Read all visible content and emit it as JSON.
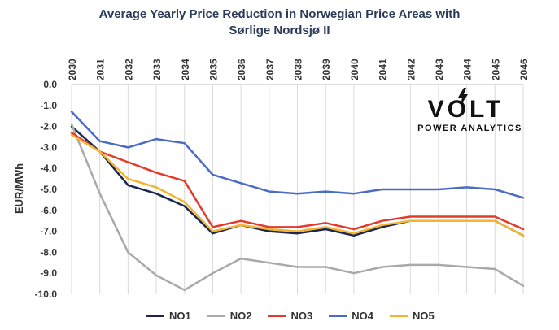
{
  "chart_data": {
    "type": "line",
    "title": "Average Yearly Price Reduction in Norwegian Price Areas with",
    "subtitle": "Sørlige Nordsjø II",
    "ylabel": "EUR/MWh",
    "xlabel": "",
    "x": [
      "2030",
      "2031",
      "2032",
      "2033",
      "2034",
      "2035",
      "2036",
      "2037",
      "2038",
      "2039",
      "2040",
      "2041",
      "2042",
      "2043",
      "2044",
      "2045",
      "2046"
    ],
    "ylim": [
      -10.0,
      0.0
    ],
    "yticks": [
      "0.0",
      "-1.0",
      "-2.0",
      "-3.0",
      "-4.0",
      "-5.0",
      "-6.0",
      "-7.0",
      "-8.0",
      "-9.0",
      "-10.0"
    ],
    "ytick_values": [
      0,
      -1,
      -2,
      -3,
      -4,
      -5,
      -6,
      -7,
      -8,
      -9,
      -10
    ],
    "legend_position": "bottom",
    "series": [
      {
        "name": "NO1",
        "color": "#1c2650",
        "values": [
          -2.0,
          -3.2,
          -4.8,
          -5.2,
          -5.8,
          -7.1,
          -6.7,
          -7.0,
          -7.1,
          -6.9,
          -7.2,
          -6.8,
          -6.5,
          -6.5,
          -6.5,
          -6.5,
          -7.2
        ]
      },
      {
        "name": "NO2",
        "color": "#a9a9a9",
        "values": [
          -1.9,
          -5.2,
          -8.0,
          -9.1,
          -9.8,
          -9.0,
          -8.3,
          -8.5,
          -8.7,
          -8.7,
          -9.0,
          -8.7,
          -8.6,
          -8.6,
          -8.7,
          -8.8,
          -9.6
        ]
      },
      {
        "name": "NO3",
        "color": "#e43a2c",
        "values": [
          -2.3,
          -3.2,
          -3.7,
          -4.2,
          -4.6,
          -6.8,
          -6.5,
          -6.8,
          -6.8,
          -6.6,
          -6.9,
          -6.5,
          -6.3,
          -6.3,
          -6.3,
          -6.3,
          -6.9
        ]
      },
      {
        "name": "NO4",
        "color": "#4a6cc4",
        "values": [
          -1.3,
          -2.7,
          -3.0,
          -2.6,
          -2.8,
          -4.3,
          -4.7,
          -5.1,
          -5.2,
          -5.1,
          -5.2,
          -5.0,
          -5.0,
          -5.0,
          -4.9,
          -5.0,
          -5.4
        ]
      },
      {
        "name": "NO5",
        "color": "#f2b530",
        "values": [
          -2.4,
          -3.2,
          -4.5,
          -4.9,
          -5.6,
          -7.0,
          -6.7,
          -6.9,
          -7.0,
          -6.8,
          -7.1,
          -6.7,
          -6.5,
          -6.5,
          -6.5,
          -6.5,
          -7.2
        ]
      }
    ]
  },
  "logo": {
    "word": "VOLT",
    "tagline": "POWER ANALYTICS"
  }
}
